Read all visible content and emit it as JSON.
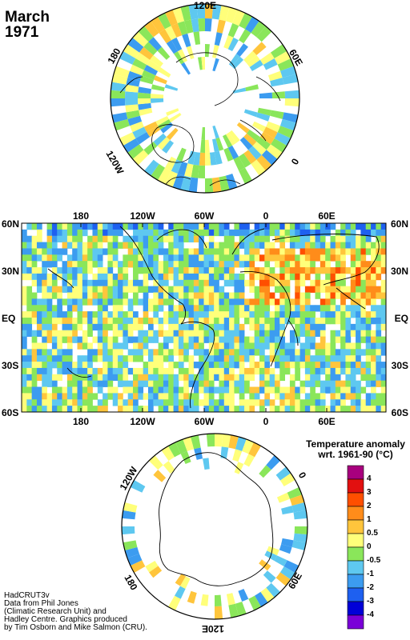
{
  "title": {
    "month": "March",
    "year": "1971"
  },
  "north_polar": {
    "labels": {
      "top": "120E",
      "left": "180",
      "right": "60E",
      "lower_left": "120W",
      "lower_right": "0"
    }
  },
  "world_map": {
    "lon_labels": [
      "180",
      "120W",
      "60W",
      "0",
      "60E"
    ],
    "lat_labels": [
      "60N",
      "30N",
      "EQ",
      "30S",
      "60S"
    ]
  },
  "south_polar": {
    "labels": {
      "upper_left": "120W",
      "upper_right": "0",
      "lower_left": "180",
      "lower_right": "60E",
      "bottom": "120E"
    }
  },
  "legend": {
    "title_line1": "Temperature anomaly",
    "title_line2": "wrt. 1961-90  (°C)",
    "bins": [
      {
        "color": "#a8007e"
      },
      {
        "color": "#e21010"
      },
      {
        "color": "#ff4f00"
      },
      {
        "color": "#ff8c1a"
      },
      {
        "color": "#ffc53c"
      },
      {
        "color": "#ffff7a"
      },
      {
        "color": "#8ae65a"
      },
      {
        "color": "#5ec8f0"
      },
      {
        "color": "#3c9cf0"
      },
      {
        "color": "#1e60f0"
      },
      {
        "color": "#0000d8"
      },
      {
        "color": "#7a00d8"
      }
    ],
    "labels": [
      "4",
      "3",
      "2",
      "1",
      "0.5",
      "0",
      "-0.5",
      "-1",
      "-2",
      "-3",
      "-4"
    ]
  },
  "credits": [
    "HadCRUT3v",
    "Data from Phil Jones",
    "(Climatic Research Unit) and",
    "Hadley Centre.  Graphics produced",
    "by Tim Osborn and Mike Salmon (CRU)."
  ]
}
